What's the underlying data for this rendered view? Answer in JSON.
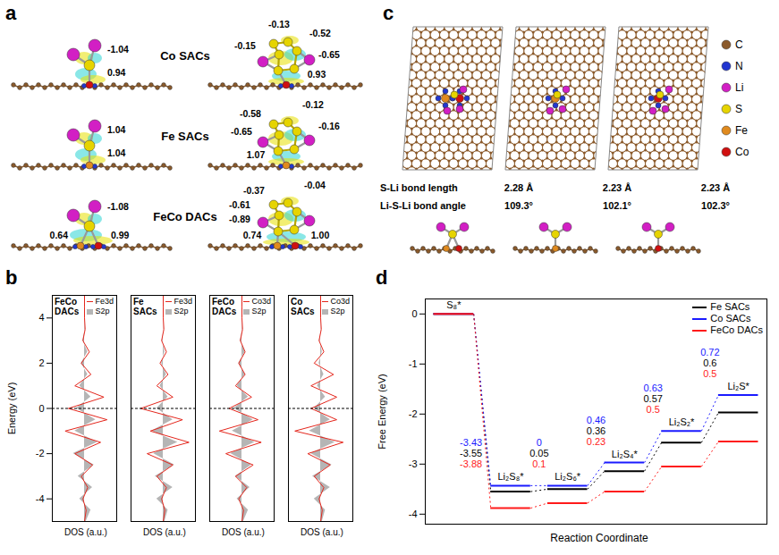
{
  "figure": {
    "a": {
      "letter": "a",
      "rows": [
        {
          "label": "Co SACs",
          "left_charges": [
            "-1.04",
            "0.94"
          ],
          "right_charges": [
            "-0.13",
            "-0.52",
            "-0.15",
            "-0.65",
            "0.93"
          ]
        },
        {
          "label": "Fe SACs",
          "left_charges": [
            "1.04",
            "1.04"
          ],
          "right_charges": [
            "-0.58",
            "-0.12",
            "-0.65",
            "-0.16",
            "1.07"
          ]
        },
        {
          "label": "FeCo DACs",
          "left_charges": [
            "-1.08",
            "0.64",
            "0.99"
          ],
          "right_charges": [
            "-0.37",
            "-0.04",
            "-0.61",
            "-0.89",
            "0.74",
            "1.00"
          ]
        }
      ]
    },
    "c": {
      "letter": "c",
      "elements": [
        {
          "name": "C",
          "color": "#8b5a2b"
        },
        {
          "name": "N",
          "color": "#2236d0"
        },
        {
          "name": "Li",
          "color": "#d21fc4"
        },
        {
          "name": "S",
          "color": "#e6d400"
        },
        {
          "name": "Fe",
          "color": "#e08a1e"
        },
        {
          "name": "Co",
          "color": "#d01010"
        }
      ],
      "rows": [
        {
          "label": "S-Li bond length",
          "values": [
            "2.28 Å",
            "2.23 Å",
            "2.23 Å"
          ]
        },
        {
          "label": "Li-S-Li bond angle",
          "values": [
            "109.3°",
            "102.1°",
            "102.3°"
          ]
        }
      ]
    }
  },
  "chart_data": [
    {
      "panel_letter": "b",
      "type": "line",
      "title": "FeCo DACs",
      "x_label": "DOS (a.u.)",
      "y_label": "Energy (eV)",
      "y": [
        -5,
        -4.5,
        -4,
        -3.5,
        -3,
        -2.5,
        -2,
        -1.5,
        -1,
        -0.5,
        0,
        0.5,
        1,
        1.5,
        2,
        2.5,
        3,
        3.5,
        4,
        4.5,
        5
      ],
      "series": [
        {
          "name": "Fe3d",
          "color": "#e4261c",
          "values": [
            0,
            0.05,
            -0.05,
            0.1,
            -0.1,
            0.25,
            -0.3,
            0.5,
            -0.6,
            0.7,
            -0.5,
            0.6,
            -0.3,
            0.2,
            -0.1,
            0.15,
            -0.05,
            0.02,
            0,
            0,
            0
          ]
        },
        {
          "name": "S2p",
          "type": "area",
          "color": "#b5b5b5",
          "values": [
            0.05,
            0.2,
            -0.15,
            0.25,
            -0.2,
            0.3,
            -0.35,
            0.4,
            -0.3,
            0.35,
            -0.25,
            0.2,
            -0.15,
            0.1,
            -0.1,
            0.1,
            -0.05,
            0.02,
            0,
            0,
            0
          ]
        }
      ],
      "xlim": [
        -1,
        1
      ],
      "ylim": [
        -5,
        5
      ],
      "yticks": [
        -4,
        -2,
        0,
        2,
        4
      ],
      "tick_labels": "y",
      "legend": "top-right",
      "reference_line": 0
    },
    {
      "type": "line",
      "title": "Fe SACs",
      "x_label": "DOS (a.u.)",
      "y": [
        -5,
        -4.5,
        -4,
        -3.5,
        -3,
        -2.5,
        -2,
        -1.5,
        -1,
        -0.5,
        0,
        0.5,
        1,
        1.5,
        2,
        2.5,
        3,
        3.5,
        4,
        4.5,
        5
      ],
      "series": [
        {
          "name": "Fe3d",
          "color": "#e4261c",
          "values": [
            0,
            0.05,
            -0.05,
            0.1,
            -0.2,
            0.3,
            -0.5,
            0.8,
            -0.4,
            0.6,
            -0.7,
            0.3,
            -0.2,
            0.15,
            -0.1,
            0.1,
            -0.05,
            0.02,
            0,
            0,
            0
          ]
        },
        {
          "name": "S2p",
          "type": "area",
          "color": "#b5b5b5",
          "values": [
            0.05,
            0.15,
            -0.2,
            0.3,
            -0.25,
            0.35,
            -0.3,
            0.45,
            -0.35,
            0.3,
            -0.2,
            0.15,
            -0.1,
            0.1,
            -0.05,
            0.05,
            -0.02,
            0.01,
            0,
            0,
            0
          ]
        }
      ],
      "xlim": [
        -1,
        1
      ],
      "ylim": [
        -5,
        5
      ],
      "tick_labels": false,
      "legend": "top-right",
      "reference_line": 0
    },
    {
      "type": "line",
      "title": "FeCo DACs",
      "x_label": "DOS (a.u.)",
      "y": [
        -5,
        -4.5,
        -4,
        -3.5,
        -3,
        -2.5,
        -2,
        -1.5,
        -1,
        -0.5,
        0,
        0.5,
        1,
        1.5,
        2,
        2.5,
        3,
        3.5,
        4,
        4.5,
        5
      ],
      "series": [
        {
          "name": "Co3d",
          "color": "#e4261c",
          "values": [
            0,
            0.05,
            -0.1,
            0.15,
            -0.2,
            0.35,
            -0.5,
            0.6,
            -0.7,
            0.5,
            -0.4,
            0.3,
            -0.2,
            0.1,
            -0.1,
            0.1,
            -0.05,
            0.02,
            0,
            0,
            0
          ]
        },
        {
          "name": "S2p",
          "type": "area",
          "color": "#b5b5b5",
          "values": [
            0.05,
            0.2,
            -0.15,
            0.25,
            -0.2,
            0.3,
            -0.35,
            0.4,
            -0.3,
            0.35,
            -0.25,
            0.2,
            -0.15,
            0.1,
            -0.1,
            0.1,
            -0.05,
            0.02,
            0,
            0,
            0
          ]
        }
      ],
      "xlim": [
        -1,
        1
      ],
      "ylim": [
        -5,
        5
      ],
      "tick_labels": false,
      "legend": "top-right",
      "reference_line": 0
    },
    {
      "type": "line",
      "title": "Co SACs",
      "x_label": "DOS (a.u.)",
      "y": [
        -5,
        -4.5,
        -4,
        -3.5,
        -3,
        -2.5,
        -2,
        -1.5,
        -1,
        -0.5,
        0,
        0.5,
        1,
        1.5,
        2,
        2.5,
        3,
        3.5,
        4,
        4.5,
        5
      ],
      "series": [
        {
          "name": "Co3d",
          "color": "#e4261c",
          "values": [
            0,
            0.05,
            -0.05,
            0.1,
            -0.2,
            0.3,
            -0.4,
            0.7,
            -0.8,
            0.5,
            -0.3,
            0.5,
            -0.3,
            0.4,
            -0.2,
            0.1,
            -0.05,
            0.02,
            0,
            0,
            0
          ]
        },
        {
          "name": "S2p",
          "type": "area",
          "color": "#b5b5b5",
          "values": [
            0.05,
            0.15,
            -0.2,
            0.3,
            -0.25,
            0.35,
            -0.3,
            0.45,
            -0.35,
            0.3,
            -0.2,
            0.15,
            -0.1,
            0.1,
            -0.05,
            0.05,
            -0.02,
            0.01,
            0,
            0,
            0
          ]
        }
      ],
      "xlim": [
        -1,
        1
      ],
      "ylim": [
        -5,
        5
      ],
      "tick_labels": false,
      "legend": "top-right",
      "reference_line": 0
    },
    {
      "panel_letter": "d",
      "type": "line",
      "x_label": "Reaction Coordinate",
      "y_label": "Free Energy (eV)",
      "categories": [
        "S₈*",
        "Li₂S₈*",
        "Li₂S₆*",
        "Li₂S₄*",
        "Li₂S₂*",
        "Li₂S*"
      ],
      "series": [
        {
          "name": "Fe SACs",
          "color": "#000000",
          "values": [
            0,
            -3.55,
            -3.5,
            -3.14,
            -2.57,
            -1.97
          ],
          "step_labels": [
            "-3.55",
            "0.05",
            "0.36",
            "0.57",
            "0.6"
          ]
        },
        {
          "name": "Co SACs",
          "color": "#1a1aff",
          "values": [
            0,
            -3.43,
            -3.43,
            -2.97,
            -2.34,
            -1.62
          ],
          "step_labels": [
            "-3.43",
            "0",
            "0.46",
            "0.63",
            "0.72"
          ]
        },
        {
          "name": "FeCo DACs",
          "color": "#ff1a1a",
          "values": [
            0,
            -3.88,
            -3.78,
            -3.55,
            -3.05,
            -2.55
          ],
          "step_labels": [
            "-3.88",
            "0.1",
            "0.23",
            "0.5",
            "0.5"
          ]
        }
      ],
      "ylim": [
        -4.2,
        0.3
      ],
      "yticks": [
        -4,
        -3,
        -2,
        -1,
        0
      ],
      "tick_labels": "y",
      "legend": "top-right",
      "line_style": "dotted"
    }
  ]
}
